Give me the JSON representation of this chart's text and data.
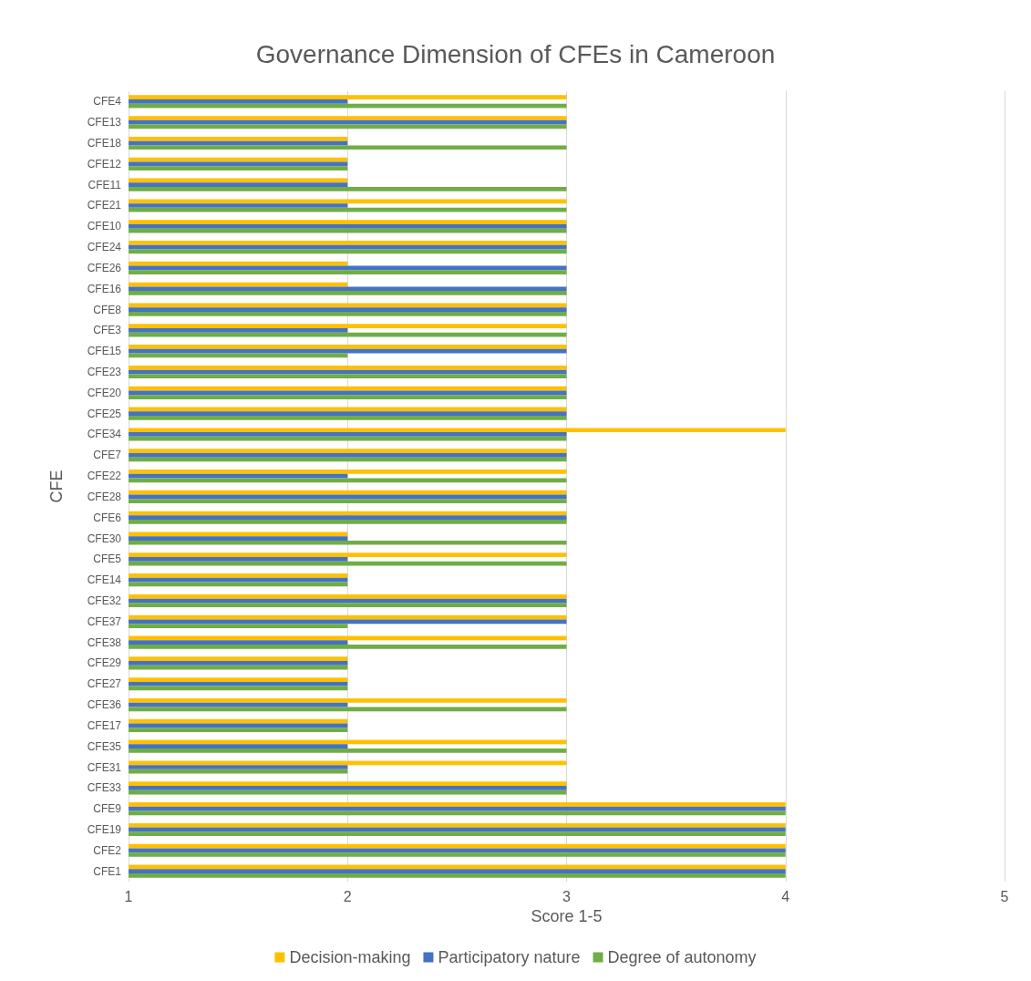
{
  "chart_data": {
    "type": "bar",
    "orientation": "horizontal",
    "title": "Governance Dimension of CFEs in Cameroon",
    "xlabel": "Score 1-5",
    "ylabel": "CFE",
    "categories": [
      "CFE4",
      "CFE13",
      "CFE18",
      "CFE12",
      "CFE11",
      "CFE21",
      "CFE10",
      "CFE24",
      "CFE26",
      "CFE16",
      "CFE8",
      "CFE3",
      "CFE15",
      "CFE23",
      "CFE20",
      "CFE25",
      "CFE34",
      "CFE7",
      "CFE22",
      "CFE28",
      "CFE6",
      "CFE30",
      "CFE5",
      "CFE14",
      "CFE32",
      "CFE37",
      "CFE38",
      "CFE29",
      "CFE27",
      "CFE36",
      "CFE17",
      "CFE35",
      "CFE31",
      "CFE33",
      "CFE9",
      "CFE19",
      "CFE2",
      "CFE1"
    ],
    "series": [
      {
        "name": "Decision-making",
        "color": "#ffc000",
        "values": [
          3,
          3,
          2,
          2,
          2,
          3,
          3,
          3,
          2,
          2,
          3,
          3,
          3,
          3,
          3,
          3,
          4,
          3,
          3,
          3,
          3,
          2,
          3,
          2,
          3,
          3,
          3,
          2,
          2,
          3,
          2,
          3,
          3,
          3,
          4,
          4,
          4,
          4
        ]
      },
      {
        "name": "Participatory nature",
        "color": "#4472c4",
        "values": [
          2,
          3,
          2,
          2,
          2,
          2,
          3,
          3,
          3,
          3,
          3,
          2,
          3,
          3,
          3,
          3,
          3,
          3,
          2,
          3,
          3,
          2,
          2,
          2,
          3,
          3,
          2,
          2,
          2,
          2,
          2,
          2,
          2,
          3,
          4,
          4,
          4,
          4
        ]
      },
      {
        "name": "Degree of autonomy",
        "color": "#70ad47",
        "values": [
          3,
          3,
          3,
          2,
          3,
          3,
          3,
          3,
          3,
          3,
          3,
          3,
          2,
          3,
          3,
          3,
          3,
          3,
          3,
          3,
          3,
          3,
          3,
          2,
          3,
          2,
          3,
          2,
          2,
          3,
          2,
          3,
          2,
          3,
          4,
          4,
          4,
          4
        ]
      }
    ],
    "xlim": [
      1,
      5
    ],
    "xticks": [
      1,
      2,
      3,
      4,
      5
    ],
    "grid": "x",
    "legend": "bottom"
  }
}
